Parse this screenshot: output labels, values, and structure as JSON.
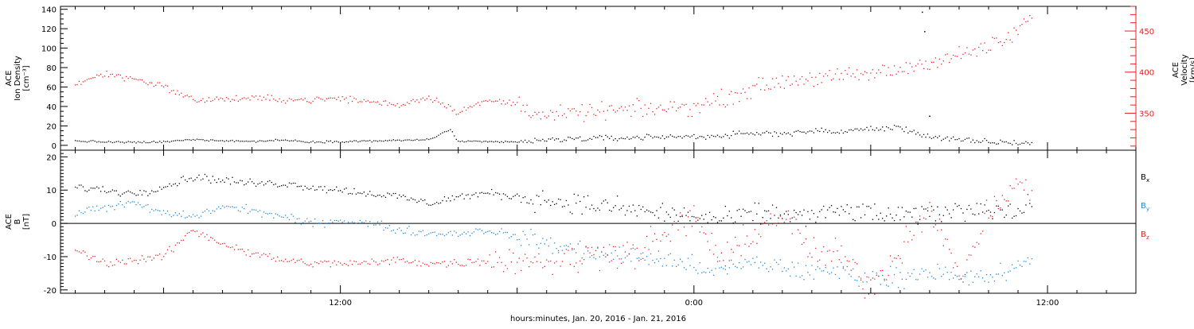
{
  "colors": {
    "black": "#000000",
    "red": "#e8201f",
    "blue": "#1e88d6",
    "frame": "#000000"
  },
  "chart_data": [
    {
      "type": "scatter",
      "panel": "top",
      "ylabel_lines": [
        "ACE",
        "Ion Density",
        "[cm⁻³]"
      ],
      "ylabel2_lines": [
        "ACE",
        "Velocity",
        "[km/s]"
      ],
      "ylim": [
        -5,
        143
      ],
      "yticks": [
        0,
        20,
        40,
        60,
        80,
        100,
        120,
        140
      ],
      "y2lim": [
        305,
        480
      ],
      "y2ticks": [
        350,
        400,
        450
      ],
      "series": [
        {
          "key": "density",
          "color": "black",
          "axis": "left",
          "points": [
            [
              "2016-01-20 03:00",
              4.5
            ],
            [
              "2016-01-20 04:00",
              3.5
            ],
            [
              "2016-01-20 05:00",
              3.0
            ],
            [
              "2016-01-20 06:00",
              3.5
            ],
            [
              "2016-01-20 07:00",
              6.0
            ],
            [
              "2016-01-20 08:00",
              5.0
            ],
            [
              "2016-01-20 09:00",
              4.0
            ],
            [
              "2016-01-20 10:00",
              5.5
            ],
            [
              "2016-01-20 11:00",
              3.5
            ],
            [
              "2016-01-20 12:00",
              4.0
            ],
            [
              "2016-01-20 13:00",
              4.5
            ],
            [
              "2016-01-20 14:00",
              5.0
            ],
            [
              "2016-01-20 15:00",
              6.0
            ],
            [
              "2016-01-20 15:45",
              16.0
            ],
            [
              "2016-01-20 16:00",
              4.0
            ],
            [
              "2016-01-20 17:00",
              3.5
            ],
            [
              "2016-01-20 18:00",
              3.5
            ],
            [
              "2016-01-20 19:00",
              5.0
            ],
            [
              "2016-01-20 20:00",
              7.0
            ],
            [
              "2016-01-20 21:00",
              7.0
            ],
            [
              "2016-01-20 22:00",
              8.0
            ],
            [
              "2016-01-20 23:00",
              9.0
            ],
            [
              "2016-01-21 00:00",
              9.0
            ],
            [
              "2016-01-21 01:00",
              10.0
            ],
            [
              "2016-01-21 02:00",
              12.0
            ],
            [
              "2016-01-21 03:00",
              12.5
            ],
            [
              "2016-01-21 04:00",
              14.5
            ],
            [
              "2016-01-21 05:00",
              14.0
            ],
            [
              "2016-01-21 06:00",
              17.0
            ],
            [
              "2016-01-21 07:00",
              18.0
            ],
            [
              "2016-01-21 08:00",
              9.0
            ],
            [
              "2016-01-21 09:00",
              5.0
            ],
            [
              "2016-01-21 10:00",
              3.5
            ],
            [
              "2016-01-21 11:00",
              2.5
            ],
            [
              "2016-01-21 11:30",
              2.5
            ]
          ]
        },
        {
          "key": "velocity",
          "color": "red",
          "axis": "right",
          "points": [
            [
              "2016-01-20 03:00",
              385
            ],
            [
              "2016-01-20 04:00",
              398
            ],
            [
              "2016-01-20 05:00",
              392
            ],
            [
              "2016-01-20 06:00",
              383
            ],
            [
              "2016-01-20 07:00",
              366
            ],
            [
              "2016-01-20 08:00",
              367
            ],
            [
              "2016-01-20 09:00",
              368
            ],
            [
              "2016-01-20 10:00",
              367
            ],
            [
              "2016-01-20 11:00",
              366
            ],
            [
              "2016-01-20 12:00",
              368
            ],
            [
              "2016-01-20 13:00",
              364
            ],
            [
              "2016-01-20 14:00",
              360
            ],
            [
              "2016-01-20 15:00",
              370
            ],
            [
              "2016-01-20 16:00",
              352
            ],
            [
              "2016-01-20 17:00",
              365
            ],
            [
              "2016-01-20 18:00",
              362
            ],
            [
              "2016-01-20 19:00",
              346
            ],
            [
              "2016-01-20 20:00",
              350
            ],
            [
              "2016-01-20 21:00",
              353
            ],
            [
              "2016-01-20 22:00",
              354
            ],
            [
              "2016-01-20 23:00",
              356
            ],
            [
              "2016-01-21 00:00",
              358
            ],
            [
              "2016-01-21 01:00",
              368
            ],
            [
              "2016-01-21 02:00",
              380
            ],
            [
              "2016-01-21 03:00",
              389
            ],
            [
              "2016-01-21 04:00",
              393
            ],
            [
              "2016-01-21 05:00",
              394
            ],
            [
              "2016-01-21 06:00",
              398
            ],
            [
              "2016-01-21 07:00",
              403
            ],
            [
              "2016-01-21 08:00",
              413
            ],
            [
              "2016-01-21 09:00",
              420
            ],
            [
              "2016-01-21 10:00",
              431
            ],
            [
              "2016-01-21 10:45",
              440
            ],
            [
              "2016-01-21 11:00",
              454
            ],
            [
              "2016-01-21 11:30",
              465
            ]
          ]
        }
      ],
      "annotations": [
        [
          "2016-01-21 07:45",
          137,
          "density"
        ],
        [
          "2016-01-21 07:50",
          117,
          "density"
        ],
        [
          "2016-01-21 08:00",
          30,
          "density"
        ]
      ]
    },
    {
      "type": "scatter",
      "panel": "bottom",
      "ylabel_lines": [
        "ACE",
        "B",
        "[nT]"
      ],
      "ylim": [
        -21,
        22
      ],
      "yticks": [
        -20,
        -10,
        0,
        10,
        20
      ],
      "zero_line": true,
      "legend": {
        "placement": "right",
        "entries": [
          {
            "label": "B",
            "sub": "x",
            "color": "black"
          },
          {
            "label": "B",
            "sub": "y",
            "color": "blue"
          },
          {
            "label": "B",
            "sub": "z",
            "color": "red"
          }
        ]
      },
      "series": [
        {
          "key": "bx",
          "label": "Bx",
          "color": "black",
          "points": [
            [
              "2016-01-20 03:00",
              11
            ],
            [
              "2016-01-20 04:00",
              10
            ],
            [
              "2016-01-20 05:00",
              9
            ],
            [
              "2016-01-20 06:00",
              11
            ],
            [
              "2016-01-20 07:00",
              14
            ],
            [
              "2016-01-20 08:00",
              13
            ],
            [
              "2016-01-20 09:00",
              12
            ],
            [
              "2016-01-20 10:00",
              12
            ],
            [
              "2016-01-20 11:00",
              11
            ],
            [
              "2016-01-20 12:00",
              10
            ],
            [
              "2016-01-20 13:00",
              9
            ],
            [
              "2016-01-20 14:00",
              8
            ],
            [
              "2016-01-20 15:00",
              6
            ],
            [
              "2016-01-20 16:00",
              8
            ],
            [
              "2016-01-20 17:00",
              9
            ],
            [
              "2016-01-20 18:00",
              8
            ],
            [
              "2016-01-20 19:00",
              7
            ],
            [
              "2016-01-20 20:00",
              6
            ],
            [
              "2016-01-20 21:00",
              5
            ],
            [
              "2016-01-20 22:00",
              4
            ],
            [
              "2016-01-20 23:00",
              3
            ],
            [
              "2016-01-21 00:00",
              2
            ],
            [
              "2016-01-21 01:00",
              1
            ],
            [
              "2016-01-21 02:00",
              3
            ],
            [
              "2016-01-21 03:00",
              3
            ],
            [
              "2016-01-21 04:00",
              2
            ],
            [
              "2016-01-21 05:00",
              4
            ],
            [
              "2016-01-21 06:00",
              3
            ],
            [
              "2016-01-21 07:00",
              2
            ],
            [
              "2016-01-21 08:00",
              3
            ],
            [
              "2016-01-21 09:00",
              4
            ],
            [
              "2016-01-21 10:00",
              5
            ],
            [
              "2016-01-21 11:00",
              3
            ],
            [
              "2016-01-21 11:30",
              6
            ]
          ]
        },
        {
          "key": "by",
          "label": "By",
          "color": "blue",
          "points": [
            [
              "2016-01-20 03:00",
              3
            ],
            [
              "2016-01-20 04:00",
              5
            ],
            [
              "2016-01-20 05:00",
              6
            ],
            [
              "2016-01-20 06:00",
              3
            ],
            [
              "2016-01-20 07:00",
              2
            ],
            [
              "2016-01-20 08:00",
              5
            ],
            [
              "2016-01-20 09:00",
              4
            ],
            [
              "2016-01-20 10:00",
              2
            ],
            [
              "2016-01-20 11:00",
              0
            ],
            [
              "2016-01-20 12:00",
              1
            ],
            [
              "2016-01-20 13:00",
              0
            ],
            [
              "2016-01-20 14:00",
              -2
            ],
            [
              "2016-01-20 15:00",
              -3
            ],
            [
              "2016-01-20 16:00",
              -3
            ],
            [
              "2016-01-20 17:00",
              -2
            ],
            [
              "2016-01-20 18:00",
              -4
            ],
            [
              "2016-01-20 19:00",
              -6
            ],
            [
              "2016-01-20 20:00",
              -8
            ],
            [
              "2016-01-20 21:00",
              -9
            ],
            [
              "2016-01-20 22:00",
              -10
            ],
            [
              "2016-01-20 23:00",
              -11
            ],
            [
              "2016-01-21 00:00",
              -13
            ],
            [
              "2016-01-21 01:00",
              -14
            ],
            [
              "2016-01-21 02:00",
              -12
            ],
            [
              "2016-01-21 03:00",
              -13
            ],
            [
              "2016-01-21 04:00",
              -15
            ],
            [
              "2016-01-21 05:00",
              -14
            ],
            [
              "2016-01-21 06:00",
              -17
            ],
            [
              "2016-01-21 07:00",
              -16
            ],
            [
              "2016-01-21 08:00",
              -14
            ],
            [
              "2016-01-21 09:00",
              -17
            ],
            [
              "2016-01-21 10:00",
              -16
            ],
            [
              "2016-01-21 11:00",
              -14
            ],
            [
              "2016-01-21 11:30",
              -9
            ]
          ]
        },
        {
          "key": "bz",
          "label": "Bz",
          "color": "red",
          "points": [
            [
              "2016-01-20 03:00",
              -8
            ],
            [
              "2016-01-20 04:00",
              -12
            ],
            [
              "2016-01-20 05:00",
              -11
            ],
            [
              "2016-01-20 06:00",
              -10
            ],
            [
              "2016-01-20 07:00",
              -2
            ],
            [
              "2016-01-20 08:00",
              -6
            ],
            [
              "2016-01-20 09:00",
              -9
            ],
            [
              "2016-01-20 10:00",
              -11
            ],
            [
              "2016-01-20 11:00",
              -12
            ],
            [
              "2016-01-20 12:00",
              -12
            ],
            [
              "2016-01-20 13:00",
              -12
            ],
            [
              "2016-01-20 14:00",
              -11
            ],
            [
              "2016-01-20 15:00",
              -12
            ],
            [
              "2016-01-20 16:00",
              -12
            ],
            [
              "2016-01-20 17:00",
              -11
            ],
            [
              "2016-01-20 18:00",
              -11
            ],
            [
              "2016-01-20 19:00",
              -11
            ],
            [
              "2016-01-20 20:00",
              -11
            ],
            [
              "2016-01-20 21:00",
              -8
            ],
            [
              "2016-01-20 22:00",
              -9
            ],
            [
              "2016-01-20 23:00",
              -4
            ],
            [
              "2016-01-21 00:00",
              2
            ],
            [
              "2016-01-21 01:00",
              -12
            ],
            [
              "2016-01-21 02:00",
              -3
            ],
            [
              "2016-01-21 03:00",
              3
            ],
            [
              "2016-01-21 04:00",
              -9
            ],
            [
              "2016-01-21 05:00",
              -10
            ],
            [
              "2016-01-21 06:00",
              -19
            ],
            [
              "2016-01-21 07:00",
              -8
            ],
            [
              "2016-01-21 08:00",
              6
            ],
            [
              "2016-01-21 09:00",
              -17
            ],
            [
              "2016-01-21 10:00",
              3
            ],
            [
              "2016-01-21 11:00",
              12
            ],
            [
              "2016-01-21 11:30",
              9
            ]
          ]
        }
      ]
    }
  ],
  "x_axis": {
    "range": [
      "2016-01-20 02:30",
      "2016-01-21 15:00"
    ],
    "tick_labels": [
      {
        "t": "2016-01-20 12:00",
        "label": "12:00"
      },
      {
        "t": "2016-01-21 00:00",
        "label": "0:00"
      },
      {
        "t": "2016-01-21 12:00",
        "label": "12:00"
      }
    ],
    "xlabel": "hours:minutes, Jan. 20, 2016 - Jan. 21, 2016"
  }
}
